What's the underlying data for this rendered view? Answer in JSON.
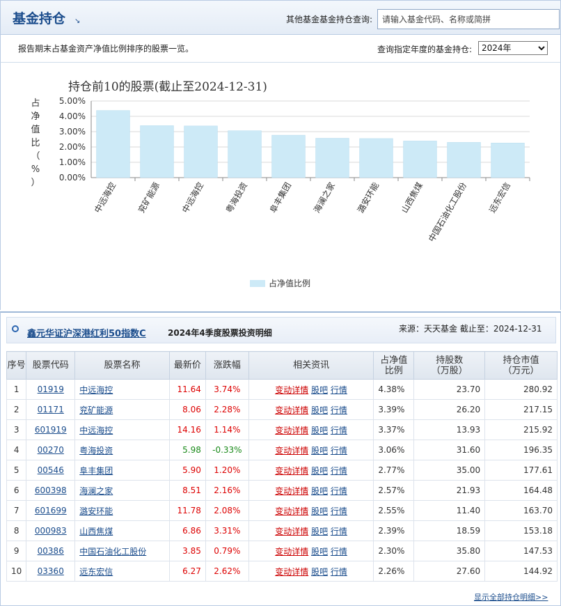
{
  "header": {
    "title": "基金持仓",
    "query_label": "其他基金基金持仓查询:",
    "search_placeholder": "请输入基金代码、名称或简拼"
  },
  "subbar": {
    "description": "报告期末占基金资产净值比例排序的股票一览。",
    "year_label": "查询指定年度的基金持仓:",
    "year_value": "2024年"
  },
  "chart_data": {
    "type": "bar",
    "title": "持仓前10的股票(截止至2024-12-31)",
    "ylabel": "占净值比（%）",
    "categories": [
      "中远海控",
      "兖矿能源",
      "中远海控",
      "粤海投资",
      "阜丰集团",
      "海澜之家",
      "潞安环能",
      "山西焦煤",
      "中国石油化工股份",
      "远东宏信"
    ],
    "series": [
      {
        "name": "占净值比例",
        "values": [
          4.38,
          3.39,
          3.37,
          3.06,
          2.77,
          2.57,
          2.55,
          2.39,
          2.3,
          2.26
        ]
      }
    ],
    "yticks": [
      "0.00%",
      "1.00%",
      "2.00%",
      "3.00%",
      "4.00%",
      "5.00%"
    ],
    "ylim": [
      0,
      5
    ],
    "legend": "bottom-center",
    "bar_color": "#cdeaf7",
    "grid": true
  },
  "detail": {
    "fund_name": "鑫元华证沪深港红利50指数C",
    "period_title": "2024年4季度股票投资明细",
    "source": "来源：天天基金    截止至：2024-12-31",
    "columns": [
      "序号",
      "股票代码",
      "股票名称",
      "最新价",
      "涨跌幅",
      "相关资讯",
      "占净值\n比例",
      "持股数\n（万股）",
      "持仓市值\n（万元）"
    ],
    "link_labels": {
      "detail": "变动详情",
      "bar": "股吧",
      "quote": "行情"
    },
    "rows": [
      {
        "idx": "1",
        "code": "01919",
        "name": "中远海控",
        "price": "11.64",
        "change": "3.74%",
        "pct": "4.38%",
        "shares": "23.70",
        "value": "280.92"
      },
      {
        "idx": "2",
        "code": "01171",
        "name": "兖矿能源",
        "price": "8.06",
        "change": "2.28%",
        "pct": "3.39%",
        "shares": "26.20",
        "value": "217.15"
      },
      {
        "idx": "3",
        "code": "601919",
        "name": "中远海控",
        "price": "14.16",
        "change": "1.14%",
        "pct": "3.37%",
        "shares": "13.93",
        "value": "215.92"
      },
      {
        "idx": "4",
        "code": "00270",
        "name": "粤海投资",
        "price": "5.98",
        "change": "-0.33%",
        "pct": "3.06%",
        "shares": "31.60",
        "value": "196.35"
      },
      {
        "idx": "5",
        "code": "00546",
        "name": "阜丰集团",
        "price": "5.90",
        "change": "1.20%",
        "pct": "2.77%",
        "shares": "35.00",
        "value": "177.61"
      },
      {
        "idx": "6",
        "code": "600398",
        "name": "海澜之家",
        "price": "8.51",
        "change": "2.16%",
        "pct": "2.57%",
        "shares": "21.93",
        "value": "164.48"
      },
      {
        "idx": "7",
        "code": "601699",
        "name": "潞安环能",
        "price": "11.78",
        "change": "2.08%",
        "pct": "2.55%",
        "shares": "11.40",
        "value": "163.70"
      },
      {
        "idx": "8",
        "code": "000983",
        "name": "山西焦煤",
        "price": "6.86",
        "change": "3.31%",
        "pct": "2.39%",
        "shares": "18.59",
        "value": "153.18"
      },
      {
        "idx": "9",
        "code": "00386",
        "name": "中国石油化工股份",
        "price": "3.85",
        "change": "0.79%",
        "pct": "2.30%",
        "shares": "35.80",
        "value": "147.53"
      },
      {
        "idx": "10",
        "code": "03360",
        "name": "远东宏信",
        "price": "6.27",
        "change": "2.62%",
        "pct": "2.26%",
        "shares": "27.60",
        "value": "144.92"
      }
    ],
    "more_link": "显示全部持仓明细>>"
  },
  "colors": {
    "brand": "#1a4c8c",
    "up": "#dd0000",
    "down": "#1a8a1a"
  }
}
